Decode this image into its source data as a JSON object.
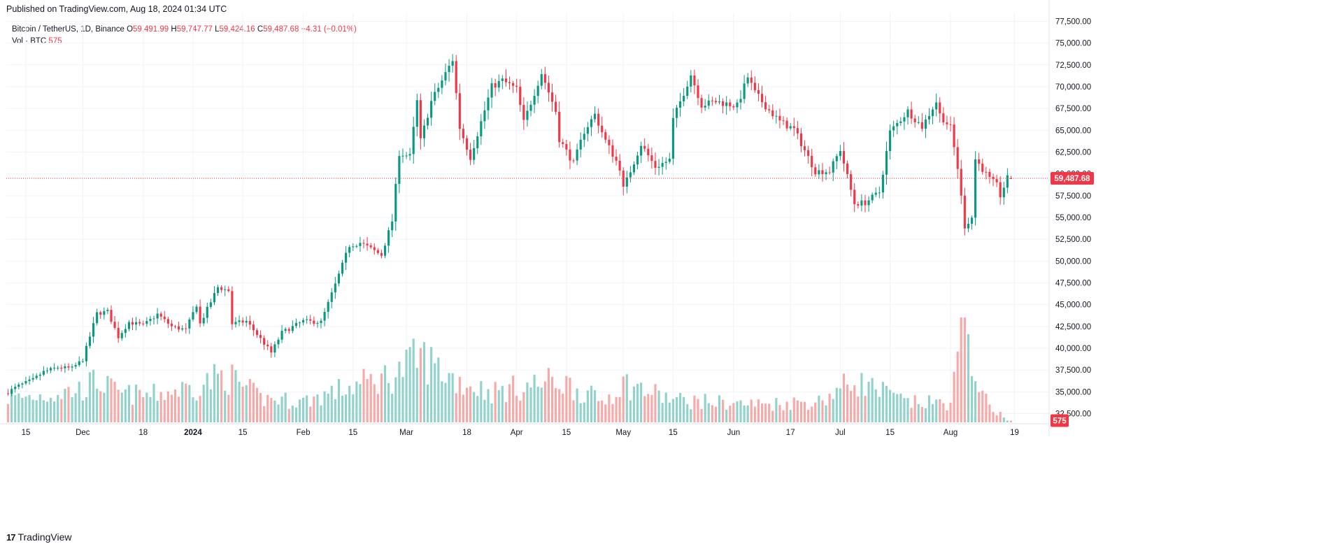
{
  "header": {
    "published": "Published on TradingView.com, Aug 18, 2024 01:34 UTC"
  },
  "legend": {
    "symbol": "Bitcoin / TetherUS, 1D, Binance",
    "o_label": "O",
    "o_value": "59,491.99",
    "h_label": "H",
    "h_value": "59,747.77",
    "l_label": "L",
    "l_value": "59,424.16",
    "c_label": "C",
    "c_value": "59,487.68",
    "change": "−4.31 (−0.01%)",
    "vol_label": "Vol · BTC",
    "vol_value": "575"
  },
  "footer": {
    "logo_text": "TradingView",
    "logo_glyph": "17"
  },
  "colors": {
    "up": "#089981",
    "down": "#f23645",
    "vol_up": "#92d2cc",
    "vol_down": "#f7a9a7",
    "grid": "#f0f3fa",
    "axis_text": "#131722"
  },
  "chart_data": {
    "type": "candlestick",
    "interval": "1D",
    "y_axis": {
      "ticks": [
        "77,500.00",
        "75,000.00",
        "72,500.00",
        "70,000.00",
        "67,500.00",
        "65,000.00",
        "62,500.00",
        "60,000.00",
        "57,500.00",
        "55,000.00",
        "52,500.00",
        "50,000.00",
        "47,500.00",
        "45,000.00",
        "42,500.00",
        "40,000.00",
        "37,500.00",
        "35,000.00",
        "32,500.00"
      ],
      "price_range": [
        31500,
        78500
      ],
      "position": "right",
      "last_price_label": "59,487.68",
      "last_volume_label": "575"
    },
    "x_axis": {
      "labels": [
        {
          "text": "15",
          "date": "2023-11-15"
        },
        {
          "text": "Dec",
          "date": "2023-12-01"
        },
        {
          "text": "18",
          "date": "2023-12-18"
        },
        {
          "text": "2024",
          "date": "2024-01-01"
        },
        {
          "text": "15",
          "date": "2024-01-15"
        },
        {
          "text": "Feb",
          "date": "2024-02-01"
        },
        {
          "text": "15",
          "date": "2024-02-15"
        },
        {
          "text": "Mar",
          "date": "2024-03-01"
        },
        {
          "text": "18",
          "date": "2024-03-18"
        },
        {
          "text": "Apr",
          "date": "2024-04-01"
        },
        {
          "text": "15",
          "date": "2024-04-15"
        },
        {
          "text": "May",
          "date": "2024-05-01"
        },
        {
          "text": "15",
          "date": "2024-05-15"
        },
        {
          "text": "Jun",
          "date": "2024-06-01"
        },
        {
          "text": "17",
          "date": "2024-06-17"
        },
        {
          "text": "Jul",
          "date": "2024-07-01"
        },
        {
          "text": "15",
          "date": "2024-07-15"
        },
        {
          "text": "Aug",
          "date": "2024-08-01"
        },
        {
          "text": "19",
          "date": "2024-08-19"
        }
      ],
      "first_date": "2023-11-10",
      "last_date": "2024-08-18"
    },
    "grid": true,
    "close_anchors": [
      [
        "2023-11-10",
        35000
      ],
      [
        "2023-11-13",
        35700
      ],
      [
        "2023-11-17",
        36400
      ],
      [
        "2023-11-20",
        37300
      ],
      [
        "2023-11-24",
        37800
      ],
      [
        "2023-11-28",
        37700
      ],
      [
        "2023-12-01",
        38700
      ],
      [
        "2023-12-05",
        44000
      ],
      [
        "2023-12-08",
        44200
      ],
      [
        "2023-12-11",
        41300
      ],
      [
        "2023-12-14",
        43000
      ],
      [
        "2023-12-18",
        42600
      ],
      [
        "2023-12-22",
        43900
      ],
      [
        "2023-12-26",
        42500
      ],
      [
        "2023-12-30",
        42100
      ],
      [
        "2024-01-02",
        45000
      ],
      [
        "2024-01-03",
        42800
      ],
      [
        "2024-01-08",
        47000
      ],
      [
        "2024-01-11",
        46600
      ],
      [
        "2024-01-12",
        42800
      ],
      [
        "2024-01-16",
        43100
      ],
      [
        "2024-01-19",
        41600
      ],
      [
        "2024-01-23",
        39500
      ],
      [
        "2024-01-26",
        41800
      ],
      [
        "2024-02-01",
        43100
      ],
      [
        "2024-02-06",
        43000
      ],
      [
        "2024-02-10",
        47300
      ],
      [
        "2024-02-14",
        51800
      ],
      [
        "2024-02-17",
        52100
      ],
      [
        "2024-02-23",
        50700
      ],
      [
        "2024-02-26",
        54600
      ],
      [
        "2024-02-28",
        62400
      ],
      [
        "2024-03-02",
        62000
      ],
      [
        "2024-03-04",
        68300
      ],
      [
        "2024-03-05",
        63800
      ],
      [
        "2024-03-08",
        68300
      ],
      [
        "2024-03-14",
        73100
      ],
      [
        "2024-03-16",
        65300
      ],
      [
        "2024-03-19",
        61900
      ],
      [
        "2024-03-25",
        70000
      ],
      [
        "2024-03-28",
        70700
      ],
      [
        "2024-04-01",
        69700
      ],
      [
        "2024-04-03",
        65900
      ],
      [
        "2024-04-08",
        71600
      ],
      [
        "2024-04-12",
        67200
      ],
      [
        "2024-04-13",
        64000
      ],
      [
        "2024-04-17",
        61200
      ],
      [
        "2024-04-20",
        64900
      ],
      [
        "2024-04-23",
        66800
      ],
      [
        "2024-04-26",
        63800
      ],
      [
        "2024-04-30",
        60700
      ],
      [
        "2024-05-01",
        58300
      ],
      [
        "2024-05-06",
        63400
      ],
      [
        "2024-05-10",
        60800
      ],
      [
        "2024-05-14",
        61600
      ],
      [
        "2024-05-15",
        66200
      ],
      [
        "2024-05-20",
        71400
      ],
      [
        "2024-05-23",
        67900
      ],
      [
        "2024-05-27",
        68300
      ],
      [
        "2024-06-02",
        67800
      ],
      [
        "2024-06-05",
        71100
      ],
      [
        "2024-06-07",
        69300
      ],
      [
        "2024-06-11",
        67300
      ],
      [
        "2024-06-14",
        66000
      ],
      [
        "2024-06-18",
        65100
      ],
      [
        "2024-06-24",
        60300
      ],
      [
        "2024-06-28",
        60300
      ],
      [
        "2024-07-01",
        62800
      ],
      [
        "2024-07-05",
        56600
      ],
      [
        "2024-07-08",
        56700
      ],
      [
        "2024-07-12",
        57900
      ],
      [
        "2024-07-15",
        64800
      ],
      [
        "2024-07-20",
        67200
      ],
      [
        "2024-07-24",
        65400
      ],
      [
        "2024-07-28",
        68300
      ],
      [
        "2024-07-29",
        66800
      ],
      [
        "2024-08-01",
        65300
      ],
      [
        "2024-08-03",
        60700
      ],
      [
        "2024-08-05",
        54000
      ],
      [
        "2024-08-07",
        55000
      ],
      [
        "2024-08-08",
        61700
      ],
      [
        "2024-08-12",
        59400
      ],
      [
        "2024-08-14",
        58700
      ],
      [
        "2024-08-15",
        57500
      ],
      [
        "2024-08-17",
        59500
      ]
    ],
    "volume_anchors": [
      [
        "2023-11-10",
        8000
      ],
      [
        "2023-11-20",
        9000
      ],
      [
        "2023-12-01",
        11000
      ],
      [
        "2023-12-05",
        14000
      ],
      [
        "2023-12-11",
        9500
      ],
      [
        "2023-12-20",
        9000
      ],
      [
        "2024-01-02",
        12000
      ],
      [
        "2024-01-10",
        16000
      ],
      [
        "2024-01-20",
        8000
      ],
      [
        "2024-02-01",
        7000
      ],
      [
        "2024-02-12",
        11000
      ],
      [
        "2024-02-27",
        16000
      ],
      [
        "2024-03-05",
        22000
      ],
      [
        "2024-03-15",
        14000
      ],
      [
        "2024-03-25",
        10000
      ],
      [
        "2024-04-13",
        14000
      ],
      [
        "2024-04-25",
        7000
      ],
      [
        "2024-05-01",
        13000
      ],
      [
        "2024-05-15",
        7500
      ],
      [
        "2024-06-07",
        6000
      ],
      [
        "2024-06-25",
        7000
      ],
      [
        "2024-07-05",
        14000
      ],
      [
        "2024-07-20",
        6500
      ],
      [
        "2024-08-01",
        6500
      ],
      [
        "2024-08-05",
        34000
      ],
      [
        "2024-08-10",
        8000
      ],
      [
        "2024-08-17",
        575
      ]
    ]
  }
}
